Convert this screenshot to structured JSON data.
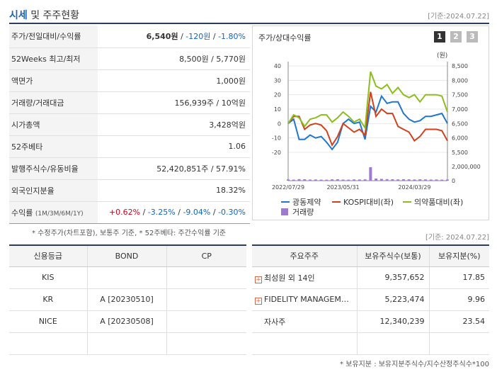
{
  "header": {
    "title_main": "시세",
    "title_rest": " 및 주주현황",
    "asof": "[기준:2024.07.22]"
  },
  "sise": [
    {
      "label": "주가/전일대비/수익률"
    },
    {
      "label": "52Weeks 최고/최저",
      "value": "8,500원 / 5,770원"
    },
    {
      "label": "액면가",
      "value": "1,000원"
    },
    {
      "label": "거래량/거래대금",
      "value": "156,939주 / 10억원"
    },
    {
      "label": "시가총액",
      "value": "3,428억원"
    },
    {
      "label": "52주베타",
      "value": "1.06"
    },
    {
      "label": "발행주식수/유동비율",
      "value": "52,420,851주 / 57.91%"
    },
    {
      "label": "외국인지분율",
      "value": "18.32%"
    },
    {
      "label": "수익률",
      "sub": "(1M/3M/6M/1Y)"
    }
  ],
  "price": {
    "value": "6,540원",
    "sep": " / ",
    "change": "-120원",
    "rate": "-1.80%"
  },
  "returns": {
    "m1": "+0.62%",
    "m3": "-3.25%",
    "m6": "-9.04%",
    "y1": "-0.30%"
  },
  "chart_panel": {
    "title": "주가/상대수익률",
    "pages": [
      "1",
      "2",
      "3"
    ],
    "unit_right": "(원)",
    "legend": {
      "s1": "광동제약",
      "s2": "KOSPI대비(좌)",
      "s3": "의약품대비(좌)",
      "s4": "거래량"
    }
  },
  "chart_data": {
    "type": "line",
    "x": [
      "2022/07/29",
      "",
      "",
      "",
      "",
      "",
      "",
      "",
      "",
      "",
      "2023/05/31",
      "",
      "",
      "",
      "",
      "",
      "",
      "",
      "",
      "",
      "",
      "",
      "",
      "2024/03/29",
      "",
      "",
      "",
      "",
      "",
      ""
    ],
    "x_tick_labels": [
      "2022/07/29",
      "2023/05/31",
      "2024/03/29"
    ],
    "left_axis": {
      "ylim": [
        -20,
        40
      ],
      "ticks": [
        "-20",
        "-10",
        "0",
        "10",
        "20",
        "30",
        "40"
      ]
    },
    "right_axis": {
      "ylim": [
        5500,
        8500
      ],
      "ticks": [
        "5,500",
        "6,000",
        "6,500",
        "7,000",
        "7,500",
        "8,000",
        "8,500"
      ]
    },
    "volume_axis": {
      "ticks": [
        "0",
        "2,000,000"
      ]
    },
    "series": [
      {
        "name": "광동제약",
        "color": "#1f77d0",
        "values": [
          0,
          3,
          -11,
          -11,
          -8,
          -10,
          -9,
          -13,
          -18,
          -13,
          0,
          3,
          0,
          1,
          -11,
          12,
          8,
          19,
          14,
          15,
          15,
          7,
          3,
          1,
          2,
          5,
          5,
          6,
          7,
          0
        ]
      },
      {
        "name": "KOSPI대비(좌)",
        "color": "#d2401e",
        "values": [
          0,
          5,
          5,
          -4,
          -1,
          0,
          -1,
          -5,
          -15,
          -9,
          0,
          -3,
          -6,
          -4,
          -8,
          22,
          5,
          10,
          7,
          7,
          -2,
          -4,
          -6,
          -12,
          -9,
          -4,
          -4,
          -4,
          -5,
          -12
        ]
      },
      {
        "name": "의약품대비(좌)",
        "color": "#8bbd1e",
        "values": [
          0,
          6,
          4,
          -2,
          3,
          4,
          6,
          6,
          1,
          4,
          8,
          5,
          1,
          3,
          -3,
          36,
          26,
          24,
          27,
          21,
          25,
          20,
          18,
          20,
          15,
          20,
          20,
          20,
          19,
          8
        ]
      },
      {
        "name": "거래량",
        "color": "#a07ad0",
        "values": [
          180000,
          150000,
          220000,
          200000,
          160000,
          170000,
          150000,
          140000,
          190000,
          200000,
          160000,
          150000,
          180000,
          170000,
          190000,
          1900000,
          300000,
          250000,
          220000,
          200000,
          180000,
          210000,
          190000,
          170000,
          200000,
          180000,
          160000,
          170000,
          150000,
          160000
        ]
      }
    ]
  },
  "footnote1": "* 수정주가(차트포함), 보통주 기준, * 52주베타: 주간수익률 기준",
  "asof2": "[기준: 2024.07.22]",
  "credit": {
    "headers": [
      "신용등급",
      "BOND",
      "CP"
    ],
    "rows": [
      {
        "agency": "KIS",
        "bond": "",
        "cp": ""
      },
      {
        "agency": "KR",
        "bond": "A [20230510]",
        "cp": ""
      },
      {
        "agency": "NICE",
        "bond": "A [20230508]",
        "cp": ""
      },
      {
        "agency": "",
        "bond": "",
        "cp": ""
      }
    ]
  },
  "holders": {
    "headers": [
      "주요주주",
      "보유주식수(보통)",
      "보유지분(%)"
    ],
    "rows": [
      {
        "name": "최성원 외 14인",
        "shares": "9,357,652",
        "pct": "17.85"
      },
      {
        "name": "FIDELITY MANAGEM…",
        "shares": "5,223,474",
        "pct": "9.96"
      },
      {
        "name": "자사주",
        "shares": "12,340,239",
        "pct": "23.54"
      },
      {
        "name": "",
        "shares": "",
        "pct": ""
      }
    ]
  },
  "footnote2": "* 보유지분 : 보유지분주식수/지수산정주식수*100"
}
